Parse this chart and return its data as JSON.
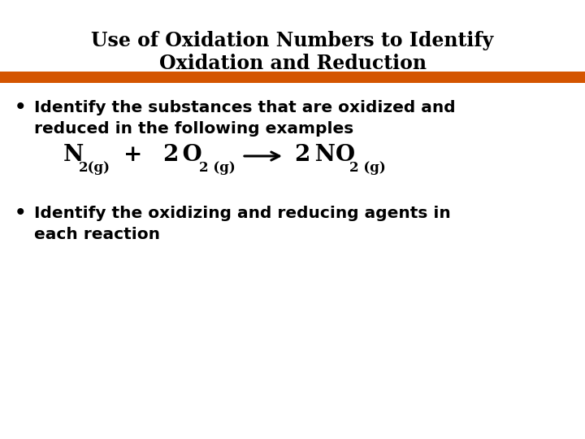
{
  "title_line1": "Use of Oxidation Numbers to Identify",
  "title_line2": "Oxidation and Reduction",
  "title_fontsize": 17,
  "title_fontweight": "bold",
  "title_color": "#000000",
  "separator_color": "#D45500",
  "bullet1_line1": "Identify the substances that are oxidized and",
  "bullet1_line2": "reduced in the following examples",
  "bullet2_line1": "Identify the oxidizing and reducing agents in",
  "bullet2_line2": "each reaction",
  "bullet_fontsize": 14.5,
  "bullet_fontweight": "bold",
  "bullet_color": "#000000",
  "equation_fontsize": 20,
  "equation_sub_fontsize": 12,
  "background_color": "#ffffff"
}
